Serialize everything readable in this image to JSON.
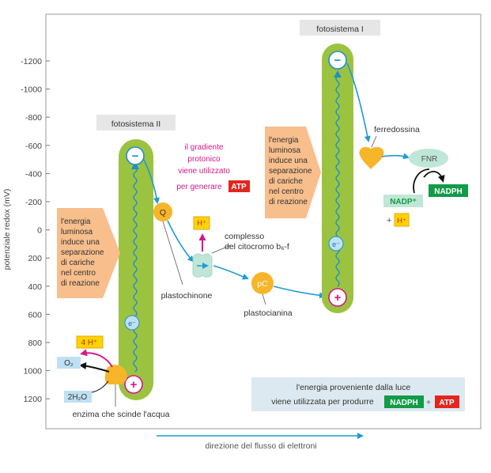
{
  "diagram": {
    "y_axis": {
      "label": "potenziale redox (mV)",
      "ticks": [
        "-1200",
        "-1000",
        "-800",
        "-600",
        "-400",
        "-200",
        "0",
        "200",
        "400",
        "600",
        "800",
        "1000",
        "1200"
      ]
    },
    "x_axis": {
      "label": "direzione del flusso di elettroni"
    },
    "photosystem_2": {
      "title": "fotosistema II",
      "energy_note": [
        "l'energia",
        "luminosa",
        "induce una",
        "separazione",
        "di cariche",
        "nel centro",
        "di reazione"
      ],
      "minus_sign": "−",
      "plus_sign": "+",
      "electron_symbol": "e⁻"
    },
    "photosystem_1": {
      "title": "fotosistema I",
      "energy_note": [
        "l'energia",
        "luminosa",
        "induce  una",
        "separazione",
        "di cariche",
        "nel centro",
        "di reazione"
      ],
      "minus_sign": "−",
      "plus_sign": "+",
      "electron_symbol": "e⁻"
    },
    "water_splitting": {
      "hplus_label": "4 H⁺",
      "o2_label": "O₂",
      "water_label": "2H₂O",
      "enzyme_label": "enzima che scinde l'acqua"
    },
    "plastoquinone": {
      "symbol": "Q",
      "label": "plastochinone"
    },
    "gradient_note": {
      "lines": [
        "il gradiente",
        "protonico",
        "viene utilizzato",
        "per generare"
      ],
      "atp_label": "ATP"
    },
    "cytochrome": {
      "hplus_label": "H⁺",
      "label_line1": "complesso",
      "label_line2": "del citocromo b₆-f"
    },
    "plastocyanin": {
      "symbol": "pC",
      "label": "plastocianina"
    },
    "ferredoxin_label": "ferredossina",
    "fnr_label": "FNR",
    "nadph_label": "NADPH",
    "nadp_label": "NADP⁺",
    "plus_sign": "+",
    "hplus_label": "H⁺",
    "bottom_note": {
      "line1": "l'energia proveniente dalla luce",
      "line2": "viene utilizzata per produrre",
      "nadph_label": "NADPH",
      "plus_sign": "+",
      "atp_label": "ATP"
    },
    "colors": {
      "green_bar": "#9cc33f",
      "wave_blue": "#1d8fd0",
      "arrow_blue": "#1f9ad6",
      "orange": "#f7b52a",
      "peach": "#f8be8c",
      "magenta": "#d4188a",
      "red": "#e2261f",
      "green_dark": "#129b48",
      "light_blue": "#bfe0f2",
      "mint": "#bfe6d6",
      "yellow": "#ffd400"
    }
  }
}
